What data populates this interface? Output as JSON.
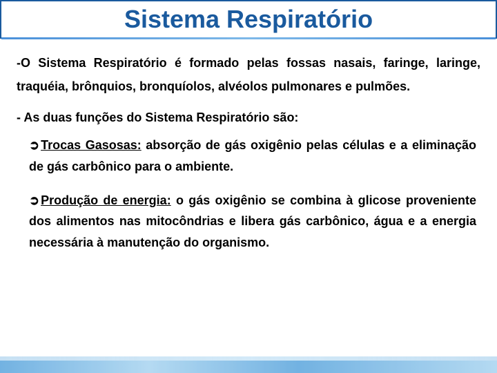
{
  "title": "Sistema Respiratório",
  "para1": "-O Sistema Respiratório é formado pelas fossas nasais, faringe, laringe, traquéia, brônquios, bronquíolos, alvéolos pulmonares e pulmões.",
  "para2": "- As duas funções do Sistema Respiratório são:",
  "bullets": [
    {
      "arrow": "➲",
      "label": "Trocas Gasosas:",
      "text": " absorção de gás oxigênio pelas células e a eliminação de gás carbônico para o ambiente."
    },
    {
      "arrow": "➲",
      "label": "Produção de energia:",
      "text": " o gás oxigênio se combina à glicose proveniente dos alimentos nas mitocôndrias e libera gás carbônico, água e a energia necessária à manutenção do organismo."
    }
  ],
  "colors": {
    "title": "#1a5a9e",
    "border": "#1a5a9e",
    "text": "#000000",
    "water1": "#5aa5dd",
    "water2": "#a8d4f0"
  }
}
